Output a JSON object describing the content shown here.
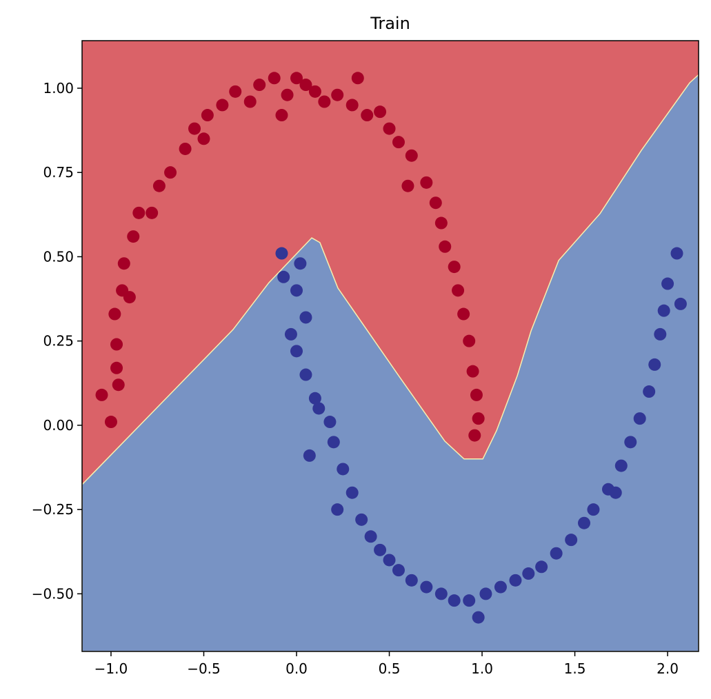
{
  "chart_data": {
    "type": "scatter",
    "title": "Train",
    "xlim": [
      -1.156,
      2.167
    ],
    "ylim": [
      -0.671,
      1.141
    ],
    "xticks": [
      {
        "value": -1.0,
        "label": "−1.0"
      },
      {
        "value": -0.5,
        "label": "−0.5"
      },
      {
        "value": 0.0,
        "label": "0.0"
      },
      {
        "value": 0.5,
        "label": "0.5"
      },
      {
        "value": 1.0,
        "label": "1.0"
      },
      {
        "value": 1.5,
        "label": "1.5"
      },
      {
        "value": 2.0,
        "label": "2.0"
      }
    ],
    "yticks": [
      {
        "value": -0.5,
        "label": "−0.50"
      },
      {
        "value": -0.25,
        "label": "−0.25"
      },
      {
        "value": 0.0,
        "label": "0.00"
      },
      {
        "value": 0.25,
        "label": "0.25"
      },
      {
        "value": 0.5,
        "label": "0.50"
      },
      {
        "value": 0.75,
        "label": "0.75"
      },
      {
        "value": 1.0,
        "label": "1.00"
      }
    ],
    "decision_boundary": {
      "x": [
        -1.156,
        -0.342,
        -0.149,
        0.082,
        0.126,
        0.223,
        0.558,
        0.799,
        0.903,
        1.004,
        1.078,
        1.19,
        1.264,
        1.413,
        1.636,
        1.859,
        2.119,
        2.167
      ],
      "y": [
        -0.176,
        0.284,
        0.423,
        0.556,
        0.542,
        0.407,
        0.141,
        -0.047,
        -0.1,
        -0.1,
        -0.016,
        0.147,
        0.28,
        0.489,
        0.628,
        0.816,
        1.016,
        1.04
      ],
      "above_color": "#da6268",
      "below_color": "#7893c4"
    },
    "series": [
      {
        "color": "#a50026",
        "x": [
          -1.05,
          -1.0,
          -0.97,
          -0.98,
          -0.94,
          -0.97,
          -0.93,
          -0.88,
          -0.85,
          -0.78,
          -0.74,
          -0.68,
          -0.6,
          -0.55,
          -0.48,
          -0.5,
          -0.4,
          -0.33,
          -0.25,
          -0.2,
          -0.12,
          -0.05,
          0.0,
          0.05,
          0.1,
          0.15,
          -0.08,
          0.22,
          0.3,
          0.38,
          0.45,
          0.5,
          0.55,
          0.62,
          0.6,
          0.7,
          0.75,
          0.78,
          0.8,
          0.85,
          0.87,
          0.9,
          0.93,
          0.95,
          0.97,
          0.98,
          0.96,
          -0.96,
          0.33,
          -0.9
        ],
        "values": [
          0.09,
          0.01,
          0.17,
          0.33,
          0.4,
          0.24,
          0.48,
          0.56,
          0.63,
          0.63,
          0.71,
          0.75,
          0.82,
          0.88,
          0.92,
          0.85,
          0.95,
          0.99,
          0.96,
          1.01,
          1.03,
          0.98,
          1.03,
          1.01,
          0.99,
          0.96,
          0.92,
          0.98,
          0.95,
          0.92,
          0.93,
          0.88,
          0.84,
          0.8,
          0.71,
          0.72,
          0.66,
          0.6,
          0.53,
          0.47,
          0.4,
          0.33,
          0.25,
          0.16,
          0.09,
          0.02,
          -0.03,
          0.12,
          1.03,
          0.38
        ]
      },
      {
        "color": "#313695",
        "x": [
          -0.08,
          -0.07,
          0.0,
          0.02,
          -0.03,
          0.0,
          0.05,
          0.1,
          0.12,
          0.07,
          0.2,
          0.18,
          0.25,
          0.3,
          0.22,
          0.35,
          0.4,
          0.45,
          0.5,
          0.55,
          0.62,
          0.7,
          0.78,
          0.85,
          0.93,
          0.98,
          1.02,
          1.1,
          1.18,
          1.25,
          1.32,
          1.4,
          1.48,
          1.55,
          1.6,
          1.68,
          1.75,
          1.8,
          1.85,
          1.9,
          1.93,
          1.96,
          1.98,
          2.0,
          2.05,
          2.07,
          0.05,
          1.72
        ],
        "values": [
          0.51,
          0.44,
          0.4,
          0.48,
          0.27,
          0.22,
          0.15,
          0.08,
          0.05,
          -0.09,
          -0.05,
          0.01,
          -0.13,
          -0.2,
          -0.25,
          -0.28,
          -0.33,
          -0.37,
          -0.4,
          -0.43,
          -0.46,
          -0.48,
          -0.5,
          -0.52,
          -0.52,
          -0.57,
          -0.5,
          -0.48,
          -0.46,
          -0.44,
          -0.42,
          -0.38,
          -0.34,
          -0.29,
          -0.25,
          -0.19,
          -0.12,
          -0.05,
          0.02,
          0.1,
          0.18,
          0.27,
          0.34,
          0.42,
          0.51,
          0.36,
          0.32,
          -0.2
        ]
      }
    ]
  }
}
